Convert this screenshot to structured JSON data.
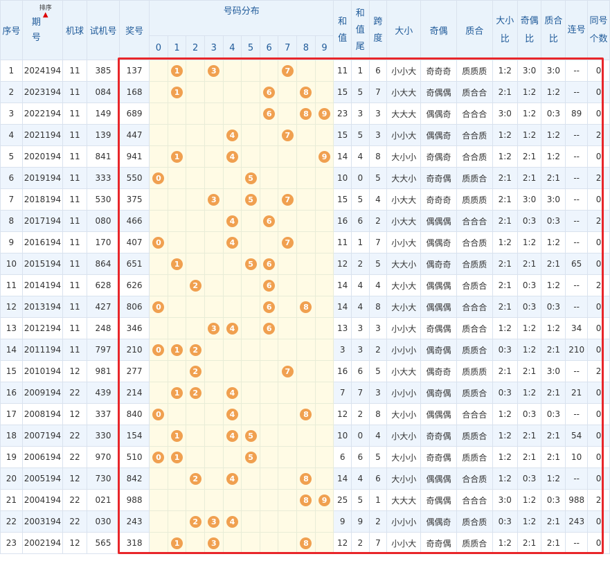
{
  "headers": {
    "seq": "序号",
    "period": "期号",
    "sort_label": "排序",
    "machine": "机球",
    "trial": "试机号",
    "prize": "奖号",
    "distribution": "号码分布",
    "digits": [
      "0",
      "1",
      "2",
      "3",
      "4",
      "5",
      "6",
      "7",
      "8",
      "9"
    ],
    "sum": "和值",
    "sum_tail": "和值尾",
    "span": "跨度",
    "big_small": "大小",
    "odd_even": "奇偶",
    "prime_composite": "质合",
    "bs_ratio": "大小比",
    "oe_ratio": "奇偶比",
    "pc_ratio": "质合比",
    "consecutive": "连号",
    "same_count": "同号个数"
  },
  "rows": [
    {
      "seq": "1",
      "period": "2024194",
      "machine": "11",
      "trial": "385",
      "prize": "137",
      "balls": [
        "1",
        "3",
        "7"
      ],
      "sum": "11",
      "tail": "1",
      "span": "6",
      "bs": "小小大",
      "oe": "奇奇奇",
      "pc": "质质质",
      "bsr": "1:2",
      "oer": "3:0",
      "pcr": "3:0",
      "consec": "--",
      "same": "0"
    },
    {
      "seq": "2",
      "period": "2023194",
      "machine": "11",
      "trial": "084",
      "prize": "168",
      "balls": [
        "1",
        "6",
        "8"
      ],
      "sum": "15",
      "tail": "5",
      "span": "7",
      "bs": "小大大",
      "oe": "奇偶偶",
      "pc": "质合合",
      "bsr": "2:1",
      "oer": "1:2",
      "pcr": "1:2",
      "consec": "--",
      "same": "0"
    },
    {
      "seq": "3",
      "period": "2022194",
      "machine": "11",
      "trial": "149",
      "prize": "689",
      "balls": [
        "6",
        "8",
        "9"
      ],
      "sum": "23",
      "tail": "3",
      "span": "3",
      "bs": "大大大",
      "oe": "偶偶奇",
      "pc": "合合合",
      "bsr": "3:0",
      "oer": "1:2",
      "pcr": "0:3",
      "consec": "89",
      "same": "0"
    },
    {
      "seq": "4",
      "period": "2021194",
      "machine": "11",
      "trial": "139",
      "prize": "447",
      "balls": [
        "4",
        "7"
      ],
      "sum": "15",
      "tail": "5",
      "span": "3",
      "bs": "小小大",
      "oe": "偶偶奇",
      "pc": "合合质",
      "bsr": "1:2",
      "oer": "1:2",
      "pcr": "1:2",
      "consec": "--",
      "same": "2"
    },
    {
      "seq": "5",
      "period": "2020194",
      "machine": "11",
      "trial": "841",
      "prize": "941",
      "balls": [
        "1",
        "4",
        "9"
      ],
      "sum": "14",
      "tail": "4",
      "span": "8",
      "bs": "大小小",
      "oe": "奇偶奇",
      "pc": "合合质",
      "bsr": "1:2",
      "oer": "2:1",
      "pcr": "1:2",
      "consec": "--",
      "same": "0"
    },
    {
      "seq": "6",
      "period": "2019194",
      "machine": "11",
      "trial": "333",
      "prize": "550",
      "balls": [
        "0",
        "5"
      ],
      "sum": "10",
      "tail": "0",
      "span": "5",
      "bs": "大大小",
      "oe": "奇奇偶",
      "pc": "质质合",
      "bsr": "2:1",
      "oer": "2:1",
      "pcr": "2:1",
      "consec": "--",
      "same": "2"
    },
    {
      "seq": "7",
      "period": "2018194",
      "machine": "11",
      "trial": "530",
      "prize": "375",
      "balls": [
        "3",
        "5",
        "7"
      ],
      "sum": "15",
      "tail": "5",
      "span": "4",
      "bs": "小大大",
      "oe": "奇奇奇",
      "pc": "质质质",
      "bsr": "2:1",
      "oer": "3:0",
      "pcr": "3:0",
      "consec": "--",
      "same": "0"
    },
    {
      "seq": "8",
      "period": "2017194",
      "machine": "11",
      "trial": "080",
      "prize": "466",
      "balls": [
        "4",
        "6"
      ],
      "sum": "16",
      "tail": "6",
      "span": "2",
      "bs": "小大大",
      "oe": "偶偶偶",
      "pc": "合合合",
      "bsr": "2:1",
      "oer": "0:3",
      "pcr": "0:3",
      "consec": "--",
      "same": "2"
    },
    {
      "seq": "9",
      "period": "2016194",
      "machine": "11",
      "trial": "170",
      "prize": "407",
      "balls": [
        "0",
        "4",
        "7"
      ],
      "sum": "11",
      "tail": "1",
      "span": "7",
      "bs": "小小大",
      "oe": "偶偶奇",
      "pc": "合合质",
      "bsr": "1:2",
      "oer": "1:2",
      "pcr": "1:2",
      "consec": "--",
      "same": "0"
    },
    {
      "seq": "10",
      "period": "2015194",
      "machine": "11",
      "trial": "864",
      "prize": "651",
      "balls": [
        "1",
        "5",
        "6"
      ],
      "sum": "12",
      "tail": "2",
      "span": "5",
      "bs": "大大小",
      "oe": "偶奇奇",
      "pc": "合质质",
      "bsr": "2:1",
      "oer": "2:1",
      "pcr": "2:1",
      "consec": "65",
      "same": "0"
    },
    {
      "seq": "11",
      "period": "2014194",
      "machine": "11",
      "trial": "628",
      "prize": "626",
      "balls": [
        "2",
        "6"
      ],
      "sum": "14",
      "tail": "4",
      "span": "4",
      "bs": "大小大",
      "oe": "偶偶偶",
      "pc": "合质合",
      "bsr": "2:1",
      "oer": "0:3",
      "pcr": "1:2",
      "consec": "--",
      "same": "2"
    },
    {
      "seq": "12",
      "period": "2013194",
      "machine": "11",
      "trial": "427",
      "prize": "806",
      "balls": [
        "0",
        "6",
        "8"
      ],
      "sum": "14",
      "tail": "4",
      "span": "8",
      "bs": "大小大",
      "oe": "偶偶偶",
      "pc": "合合合",
      "bsr": "2:1",
      "oer": "0:3",
      "pcr": "0:3",
      "consec": "--",
      "same": "0"
    },
    {
      "seq": "13",
      "period": "2012194",
      "machine": "11",
      "trial": "248",
      "prize": "346",
      "balls": [
        "3",
        "4",
        "6"
      ],
      "sum": "13",
      "tail": "3",
      "span": "3",
      "bs": "小小大",
      "oe": "奇偶偶",
      "pc": "质合合",
      "bsr": "1:2",
      "oer": "1:2",
      "pcr": "1:2",
      "consec": "34",
      "same": "0"
    },
    {
      "seq": "14",
      "period": "2011194",
      "machine": "11",
      "trial": "797",
      "prize": "210",
      "balls": [
        "0",
        "1",
        "2"
      ],
      "sum": "3",
      "tail": "3",
      "span": "2",
      "bs": "小小小",
      "oe": "偶奇偶",
      "pc": "质质合",
      "bsr": "0:3",
      "oer": "1:2",
      "pcr": "2:1",
      "consec": "210",
      "same": "0"
    },
    {
      "seq": "15",
      "period": "2010194",
      "machine": "12",
      "trial": "981",
      "prize": "277",
      "balls": [
        "2",
        "7"
      ],
      "sum": "16",
      "tail": "6",
      "span": "5",
      "bs": "小大大",
      "oe": "偶奇奇",
      "pc": "质质质",
      "bsr": "2:1",
      "oer": "2:1",
      "pcr": "3:0",
      "consec": "--",
      "same": "2"
    },
    {
      "seq": "16",
      "period": "2009194",
      "machine": "22",
      "trial": "439",
      "prize": "214",
      "balls": [
        "1",
        "2",
        "4"
      ],
      "sum": "7",
      "tail": "7",
      "span": "3",
      "bs": "小小小",
      "oe": "偶奇偶",
      "pc": "质质合",
      "bsr": "0:3",
      "oer": "1:2",
      "pcr": "2:1",
      "consec": "21",
      "same": "0"
    },
    {
      "seq": "17",
      "period": "2008194",
      "machine": "12",
      "trial": "337",
      "prize": "840",
      "balls": [
        "0",
        "4",
        "8"
      ],
      "sum": "12",
      "tail": "2",
      "span": "8",
      "bs": "大小小",
      "oe": "偶偶偶",
      "pc": "合合合",
      "bsr": "1:2",
      "oer": "0:3",
      "pcr": "0:3",
      "consec": "--",
      "same": "0"
    },
    {
      "seq": "18",
      "period": "2007194",
      "machine": "22",
      "trial": "330",
      "prize": "154",
      "balls": [
        "1",
        "4",
        "5"
      ],
      "sum": "10",
      "tail": "0",
      "span": "4",
      "bs": "小大小",
      "oe": "奇奇偶",
      "pc": "质质合",
      "bsr": "1:2",
      "oer": "2:1",
      "pcr": "2:1",
      "consec": "54",
      "same": "0"
    },
    {
      "seq": "19",
      "period": "2006194",
      "machine": "22",
      "trial": "970",
      "prize": "510",
      "balls": [
        "0",
        "1",
        "5"
      ],
      "sum": "6",
      "tail": "6",
      "span": "5",
      "bs": "大小小",
      "oe": "奇奇偶",
      "pc": "质质合",
      "bsr": "1:2",
      "oer": "2:1",
      "pcr": "2:1",
      "consec": "10",
      "same": "0"
    },
    {
      "seq": "20",
      "period": "2005194",
      "machine": "12",
      "trial": "730",
      "prize": "842",
      "balls": [
        "2",
        "4",
        "8"
      ],
      "sum": "14",
      "tail": "4",
      "span": "6",
      "bs": "大小小",
      "oe": "偶偶偶",
      "pc": "合合质",
      "bsr": "1:2",
      "oer": "0:3",
      "pcr": "1:2",
      "consec": "--",
      "same": "0"
    },
    {
      "seq": "21",
      "period": "2004194",
      "machine": "22",
      "trial": "021",
      "prize": "988",
      "balls": [
        "8",
        "9"
      ],
      "sum": "25",
      "tail": "5",
      "span": "1",
      "bs": "大大大",
      "oe": "奇偶偶",
      "pc": "合合合",
      "bsr": "3:0",
      "oer": "1:2",
      "pcr": "0:3",
      "consec": "988",
      "same": "2"
    },
    {
      "seq": "22",
      "period": "2003194",
      "machine": "22",
      "trial": "030",
      "prize": "243",
      "balls": [
        "2",
        "3",
        "4"
      ],
      "sum": "9",
      "tail": "9",
      "span": "2",
      "bs": "小小小",
      "oe": "偶偶奇",
      "pc": "质合质",
      "bsr": "0:3",
      "oer": "1:2",
      "pcr": "2:1",
      "consec": "243",
      "same": "0"
    },
    {
      "seq": "23",
      "period": "2002194",
      "machine": "12",
      "trial": "565",
      "prize": "318",
      "balls": [
        "1",
        "3",
        "8"
      ],
      "sum": "12",
      "tail": "2",
      "span": "7",
      "bs": "小小大",
      "oe": "奇奇偶",
      "pc": "质质合",
      "bsr": "1:2",
      "oer": "2:1",
      "pcr": "2:1",
      "consec": "--",
      "same": "0"
    }
  ]
}
